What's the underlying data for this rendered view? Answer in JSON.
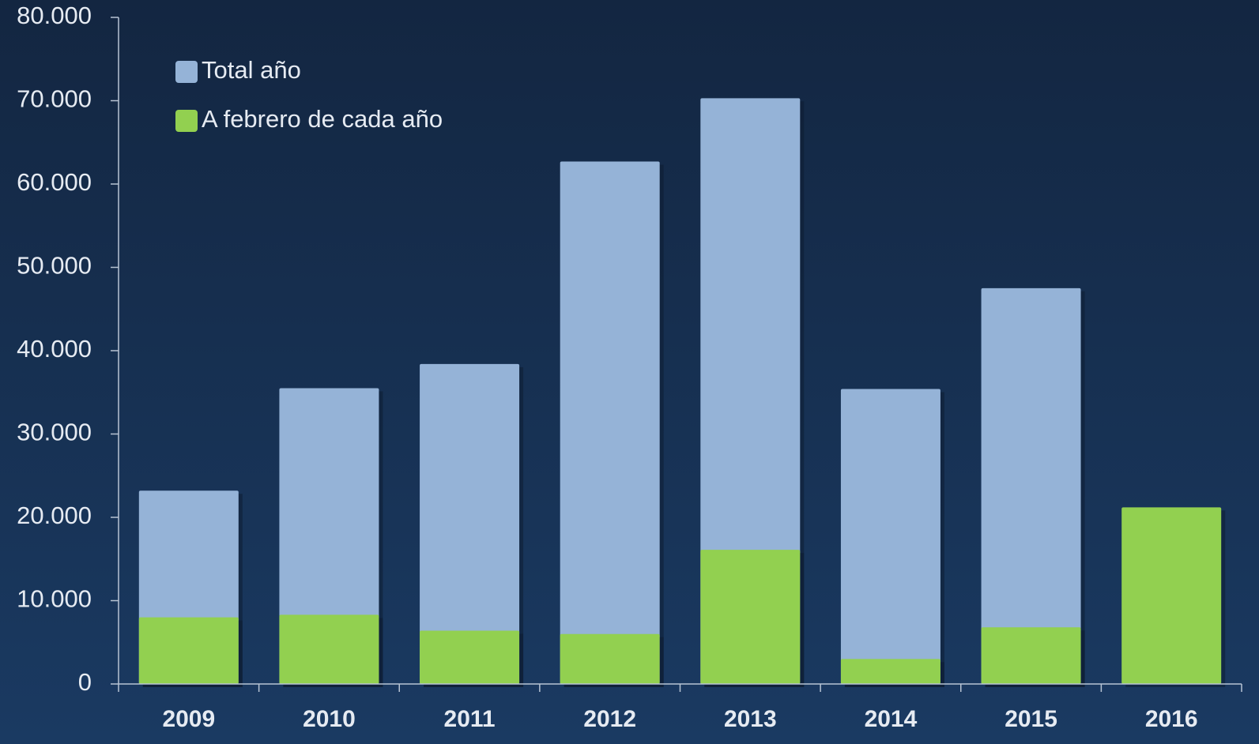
{
  "chart_data": {
    "type": "bar",
    "categories": [
      "2009",
      "2010",
      "2011",
      "2012",
      "2013",
      "2014",
      "2015",
      "2016"
    ],
    "series": [
      {
        "name": "Total año",
        "color": "#95b3d7",
        "values": [
          23200,
          35500,
          38400,
          62700,
          70300,
          35400,
          47500,
          null
        ]
      },
      {
        "name": "A febrero de cada año",
        "color": "#92d050",
        "values": [
          8000,
          8300,
          6400,
          6000,
          16100,
          3000,
          6800,
          21200
        ]
      }
    ],
    "ylim": [
      0,
      80000
    ],
    "yticks": [
      0,
      {
        "value": 10000,
        "label": "10.000"
      },
      {
        "value": 20000,
        "label": "20.000"
      },
      {
        "value": 30000,
        "label": "30.000"
      },
      {
        "value": 40000,
        "label": "40.000"
      },
      {
        "value": 50000,
        "label": "50.000"
      },
      {
        "value": 60000,
        "label": "60.000"
      },
      {
        "value": 70000,
        "label": "70.000"
      },
      {
        "value": 80000,
        "label": "80.000"
      }
    ],
    "legend": "upper left"
  }
}
